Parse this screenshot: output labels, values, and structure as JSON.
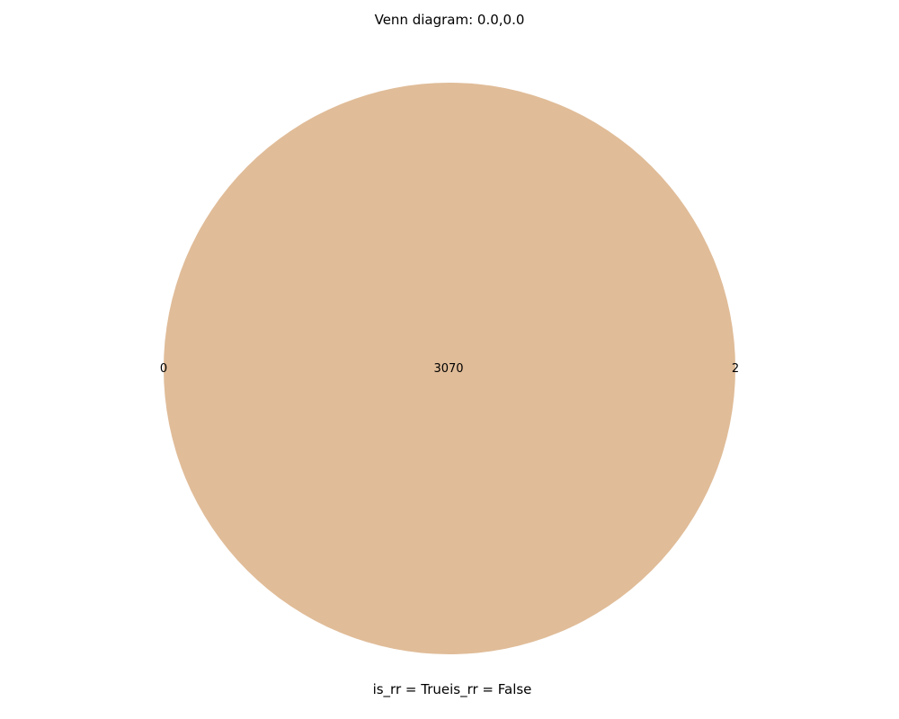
{
  "title": "Venn diagram: 0.0,0.0",
  "colors": {
    "background": "#ffffff",
    "overlap_fill": "#e0bc98",
    "text": "#000000"
  },
  "venn": {
    "regions": {
      "only_left": "0",
      "overlap": "3070",
      "only_right": "2"
    },
    "set_labels_text": "is_rr = Trueis_rr = False"
  }
}
